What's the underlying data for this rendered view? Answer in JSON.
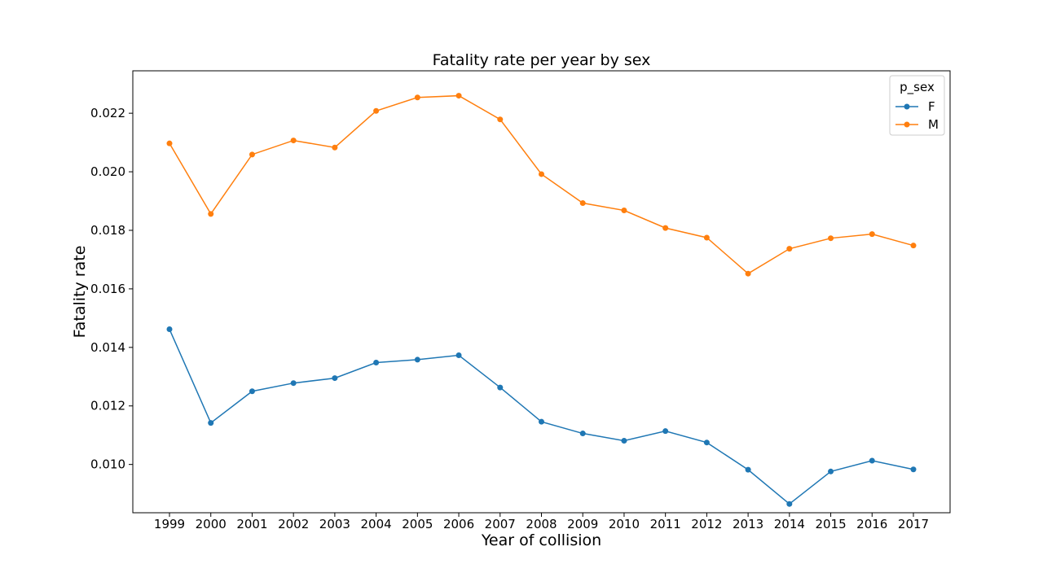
{
  "chart_data": {
    "type": "line",
    "title": "Fatality rate per year by sex",
    "xlabel": "Year of collision",
    "ylabel": "Fatality rate",
    "x": [
      "1999",
      "2000",
      "2001",
      "2002",
      "2003",
      "2004",
      "2005",
      "2006",
      "2007",
      "2008",
      "2009",
      "2010",
      "2011",
      "2012",
      "2013",
      "2014",
      "2015",
      "2016",
      "2017"
    ],
    "ylim": [
      0.00835,
      0.02345
    ],
    "yticks": [
      "0.010",
      "0.012",
      "0.014",
      "0.016",
      "0.018",
      "0.020",
      "0.022"
    ],
    "grid": false,
    "legend": {
      "title": "p_sex",
      "placement": "top-right"
    },
    "series": [
      {
        "name": "F",
        "color": "#1f77b4",
        "marker": "circle",
        "values": [
          0.01462,
          0.01142,
          0.0125,
          0.01278,
          0.01295,
          0.01348,
          0.01358,
          0.01373,
          0.01263,
          0.01146,
          0.01106,
          0.01081,
          0.01114,
          0.01075,
          0.00982,
          0.00865,
          0.00976,
          0.01013,
          0.00983
        ]
      },
      {
        "name": "M",
        "color": "#ff7f0e",
        "marker": "circle",
        "values": [
          0.02097,
          0.01856,
          0.02059,
          0.02107,
          0.02083,
          0.02208,
          0.02254,
          0.0226,
          0.02179,
          0.01992,
          0.01893,
          0.01868,
          0.01808,
          0.01775,
          0.01652,
          0.01737,
          0.01773,
          0.01787,
          0.01748
        ]
      }
    ]
  }
}
